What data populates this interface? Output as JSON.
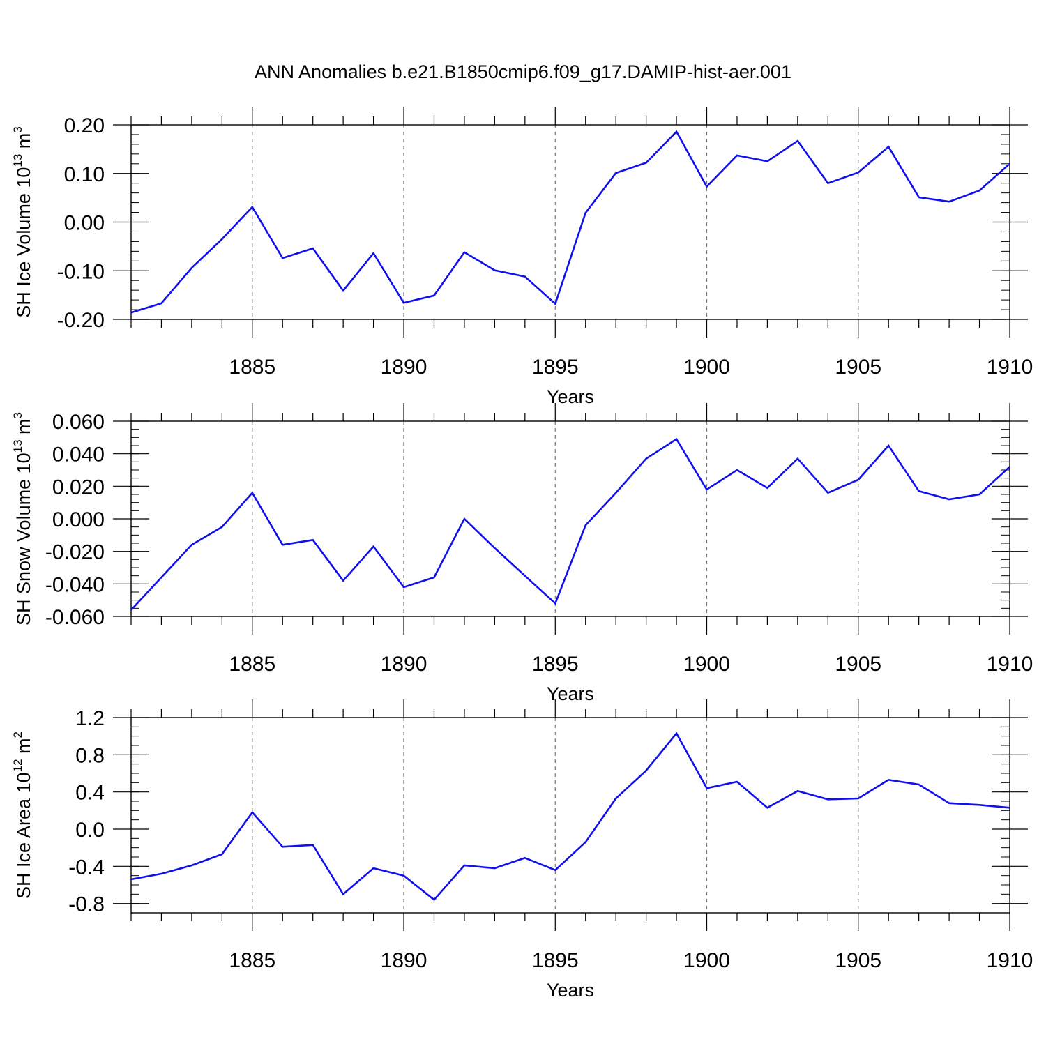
{
  "title": "ANN Anomalies b.e21.B1850cmip6.f09_g17.DAMIP-hist-aer.001",
  "colors": {
    "line": "#1010ee",
    "axis": "#000000",
    "grid": "#777777"
  },
  "chart_data": [
    {
      "type": "line",
      "name": "panel-ice-volume",
      "ylabel_main": "SH Ice Volume 10",
      "ylabel_exp": "13",
      "ylabel_unit": " m",
      "ylabel_unit_exp": "3",
      "xlabel": "Years",
      "xlim": [
        1881,
        1910
      ],
      "ylim": [
        -0.2,
        0.2
      ],
      "xticks": [
        1885,
        1890,
        1895,
        1900,
        1905,
        1910
      ],
      "xtick_labels": [
        "1885",
        "1890",
        "1895",
        "1900",
        "1905",
        "1910"
      ],
      "yticks": [
        -0.2,
        -0.1,
        0.0,
        0.1,
        0.2
      ],
      "ytick_labels": [
        "-0.20",
        "-0.10",
        "0.00",
        "0.10",
        "0.20"
      ],
      "yminor": 0.02,
      "x": [
        1881,
        1882,
        1883,
        1884,
        1885,
        1886,
        1887,
        1888,
        1889,
        1890,
        1891,
        1892,
        1893,
        1894,
        1895,
        1896,
        1897,
        1898,
        1899,
        1900,
        1901,
        1902,
        1903,
        1904,
        1905,
        1906,
        1907,
        1908,
        1909,
        1910
      ],
      "values": [
        -0.186,
        -0.167,
        -0.094,
        -0.035,
        0.031,
        -0.074,
        -0.054,
        -0.141,
        -0.064,
        -0.166,
        -0.151,
        -0.062,
        -0.099,
        -0.112,
        -0.168,
        0.019,
        0.101,
        0.122,
        0.186,
        0.073,
        0.137,
        0.125,
        0.167,
        0.08,
        0.102,
        0.155,
        0.051,
        0.042,
        0.065,
        0.12
      ]
    },
    {
      "type": "line",
      "name": "panel-snow-volume",
      "ylabel_main": "SH Snow Volume 10",
      "ylabel_exp": "13",
      "ylabel_unit": " m",
      "ylabel_unit_exp": "3",
      "xlabel": "Years",
      "xlim": [
        1881,
        1910
      ],
      "ylim": [
        -0.06,
        0.06
      ],
      "xticks": [
        1885,
        1890,
        1895,
        1900,
        1905,
        1910
      ],
      "xtick_labels": [
        "1885",
        "1890",
        "1895",
        "1900",
        "1905",
        "1910"
      ],
      "yticks": [
        -0.06,
        -0.04,
        -0.02,
        0.0,
        0.02,
        0.04,
        0.06
      ],
      "ytick_labels": [
        "-0.060",
        "-0.040",
        "-0.020",
        "0.000",
        "0.020",
        "0.040",
        "0.060"
      ],
      "yminor": 0.005,
      "x": [
        1881,
        1882,
        1883,
        1884,
        1885,
        1886,
        1887,
        1888,
        1889,
        1890,
        1891,
        1892,
        1893,
        1894,
        1895,
        1896,
        1897,
        1898,
        1899,
        1900,
        1901,
        1902,
        1903,
        1904,
        1905,
        1906,
        1907,
        1908,
        1909,
        1910
      ],
      "values": [
        -0.056,
        -0.036,
        -0.016,
        -0.005,
        0.016,
        -0.016,
        -0.013,
        -0.038,
        -0.017,
        -0.042,
        -0.036,
        0.0,
        -0.018,
        -0.035,
        -0.052,
        -0.004,
        0.016,
        0.037,
        0.049,
        0.018,
        0.03,
        0.019,
        0.037,
        0.016,
        0.024,
        0.045,
        0.017,
        0.012,
        0.015,
        0.032
      ]
    },
    {
      "type": "line",
      "name": "panel-ice-area",
      "ylabel_main": "SH Ice Area 10",
      "ylabel_exp": "12",
      "ylabel_unit": " m",
      "ylabel_unit_exp": "2",
      "xlabel": "Years",
      "xlim": [
        1881,
        1910
      ],
      "ylim": [
        -0.9,
        1.2
      ],
      "xticks": [
        1885,
        1890,
        1895,
        1900,
        1905,
        1910
      ],
      "xtick_labels": [
        "1885",
        "1890",
        "1895",
        "1900",
        "1905",
        "1910"
      ],
      "yticks": [
        -0.8,
        -0.4,
        0.0,
        0.4,
        0.8,
        1.2
      ],
      "ytick_labels": [
        "-0.8",
        "-0.4",
        "0.0",
        "0.4",
        "0.8",
        "1.2"
      ],
      "yminor": 0.1,
      "x": [
        1881,
        1882,
        1883,
        1884,
        1885,
        1886,
        1887,
        1888,
        1889,
        1890,
        1891,
        1892,
        1893,
        1894,
        1895,
        1896,
        1897,
        1898,
        1899,
        1900,
        1901,
        1902,
        1903,
        1904,
        1905,
        1906,
        1907,
        1908,
        1909,
        1910
      ],
      "values": [
        -0.54,
        -0.48,
        -0.39,
        -0.27,
        0.18,
        -0.19,
        -0.17,
        -0.7,
        -0.42,
        -0.5,
        -0.76,
        -0.39,
        -0.42,
        -0.31,
        -0.44,
        -0.14,
        0.33,
        0.63,
        1.03,
        0.44,
        0.51,
        0.23,
        0.41,
        0.32,
        0.33,
        0.53,
        0.48,
        0.28,
        0.26,
        0.23
      ]
    }
  ]
}
